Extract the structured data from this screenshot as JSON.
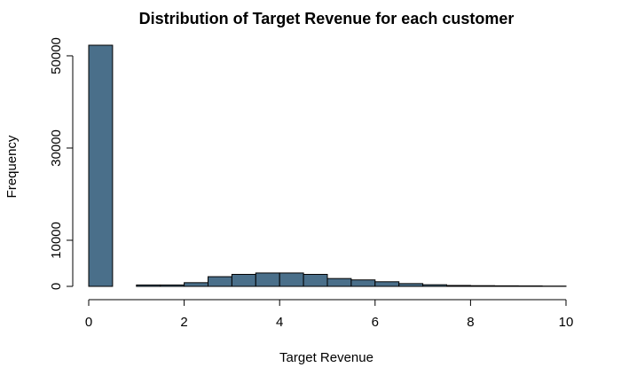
{
  "chart_data": {
    "type": "bar",
    "title": "Distribution of Target Revenue for each customer",
    "xlabel": "Target Revenue",
    "ylabel": "Frequency",
    "bin_width": 0.5,
    "bins_start": [
      0,
      0.5,
      1.0,
      1.5,
      2.0,
      2.5,
      3.0,
      3.5,
      4.0,
      4.5,
      5.0,
      5.5,
      6.0,
      6.5,
      7.0,
      7.5,
      8.0,
      8.5,
      9.0,
      9.5
    ],
    "values": [
      52300,
      0,
      300,
      300,
      800,
      2100,
      2600,
      2900,
      2900,
      2600,
      1700,
      1400,
      1000,
      600,
      350,
      200,
      150,
      120,
      100,
      60
    ],
    "xlim": [
      0,
      10
    ],
    "ylim": [
      0,
      52300
    ],
    "x_ticks": [
      0,
      2,
      4,
      6,
      8,
      10
    ],
    "y_ticks": [
      0,
      10000,
      30000,
      50000
    ],
    "bar_color": "#4a6f8a",
    "grid": false
  }
}
